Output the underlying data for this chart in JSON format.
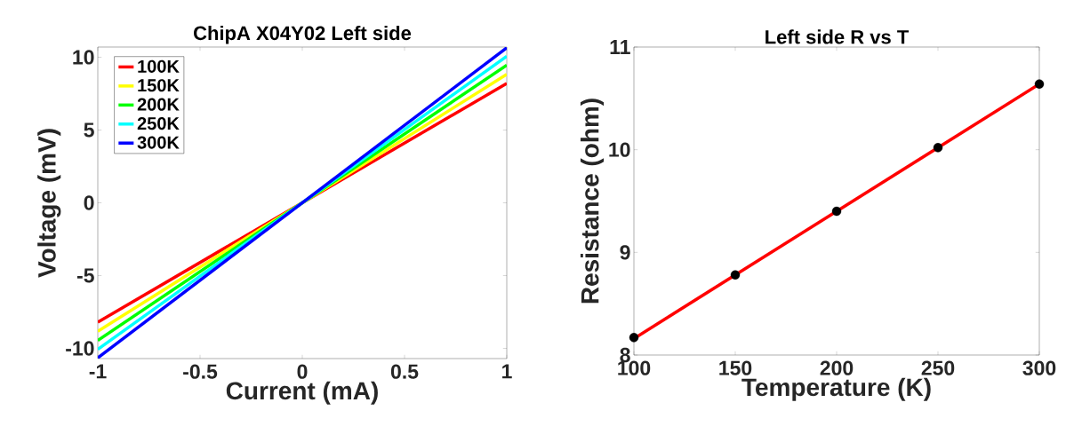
{
  "chart_data": [
    {
      "type": "line",
      "title": "ChipA X04Y02 Left side",
      "xlabel": "Current (mA)",
      "ylabel": "Voltage (mV)",
      "xlim": [
        -1,
        1
      ],
      "ylim": [
        -10.7,
        10.7
      ],
      "xticks": [
        -1,
        -0.5,
        0,
        0.5,
        1
      ],
      "yticks": [
        -10,
        -5,
        0,
        5,
        10
      ],
      "legend": "top left",
      "series": [
        {
          "name": "100K",
          "color": "#ff0000",
          "x": [
            -1,
            1
          ],
          "values": [
            -8.2,
            8.2
          ]
        },
        {
          "name": "150K",
          "color": "#ffff00",
          "x": [
            -1,
            1
          ],
          "values": [
            -8.83,
            8.83
          ]
        },
        {
          "name": "200K",
          "color": "#00ff00",
          "x": [
            -1,
            1
          ],
          "values": [
            -9.46,
            9.46
          ]
        },
        {
          "name": "250K",
          "color": "#00ffff",
          "x": [
            -1,
            1
          ],
          "values": [
            -10.07,
            10.07
          ]
        },
        {
          "name": "300K",
          "color": "#0000ff",
          "x": [
            -1,
            1
          ],
          "values": [
            -10.65,
            10.65
          ]
        }
      ]
    },
    {
      "type": "line",
      "title": "Left side R vs T",
      "xlabel": "Temperature (K)",
      "ylabel": "Resistance (ohm)",
      "xlim": [
        100,
        300
      ],
      "ylim": [
        8,
        11
      ],
      "xticks": [
        100,
        150,
        200,
        250,
        300
      ],
      "yticks": [
        8,
        9,
        10,
        11
      ],
      "series": [
        {
          "type": "line",
          "color": "#ff0000",
          "x": [
            100,
            300
          ],
          "values": [
            8.16,
            10.64
          ]
        },
        {
          "type": "scatter",
          "marker": "circle",
          "color": "#000000",
          "x": [
            100,
            150,
            200,
            250,
            300
          ],
          "values": [
            8.17,
            8.78,
            9.4,
            10.02,
            10.64
          ]
        }
      ]
    }
  ]
}
